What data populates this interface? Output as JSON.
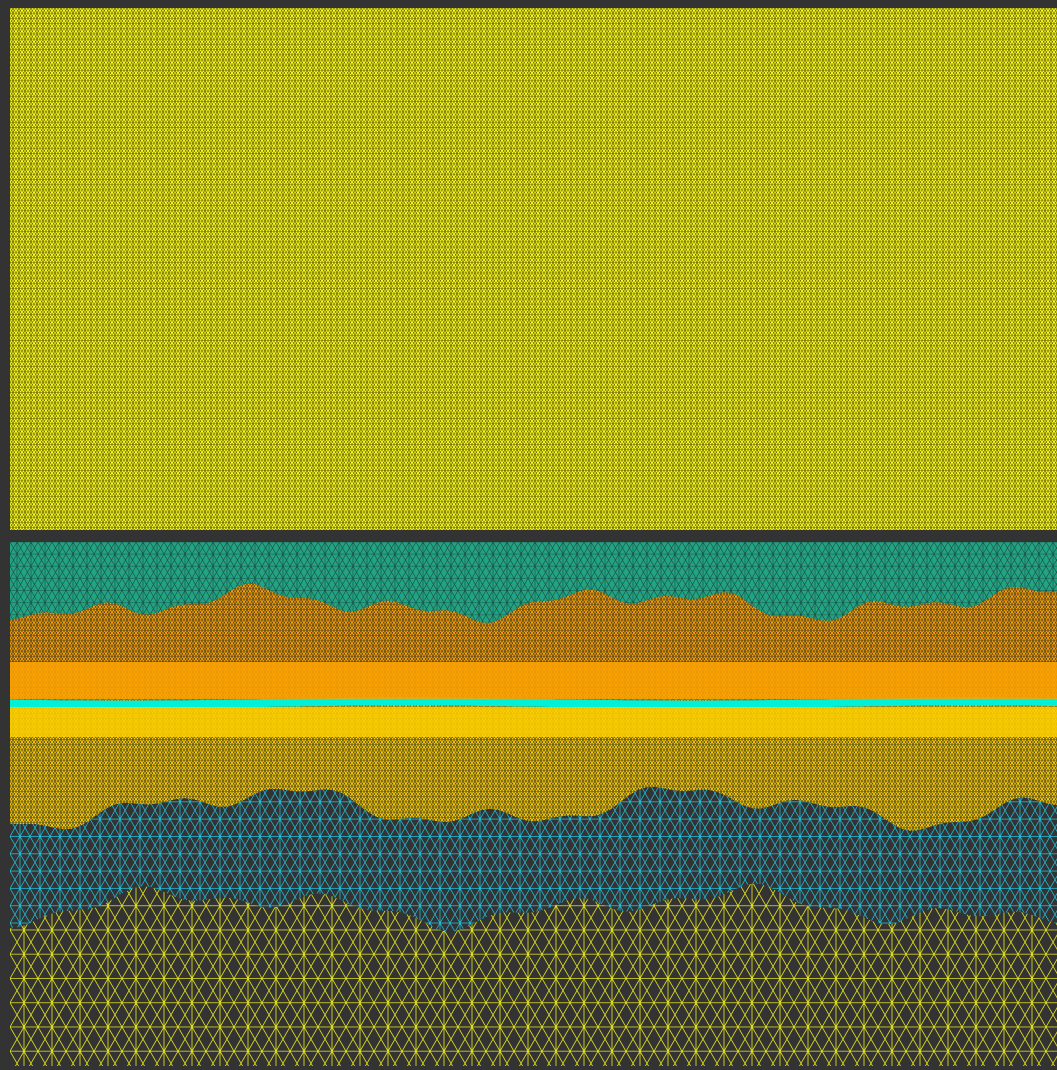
{
  "figure": {
    "panels": [
      {
        "name": "uniform-mesh-panel",
        "regions": [
          {
            "name": "single-region",
            "fill": "#ffff1f",
            "edge": "#1f1f00",
            "density": "very-fine"
          }
        ]
      },
      {
        "name": "layered-mesh-panel",
        "regions": [
          {
            "name": "top-layer",
            "fill": "#22a383",
            "edge": "#1a4c40",
            "density": "medium"
          },
          {
            "name": "upper-graded-layer",
            "fill": "#ffa500",
            "edge": "#2a2a2a",
            "density": "graded-fine"
          },
          {
            "name": "thin-interface-band",
            "fill": "#00f0d8",
            "edge": "#00f0d8",
            "density": "very-fine"
          },
          {
            "name": "lower-graded-layer",
            "fill": "#ffd000",
            "edge": "#2a2a2a",
            "density": "graded-fine"
          },
          {
            "name": "blue-layer",
            "fill": "#333333",
            "edge": "#1ec8e6",
            "density": "medium"
          },
          {
            "name": "bottom-layer",
            "fill": "#333333",
            "edge": "#e8e81e",
            "density": "coarse"
          }
        ]
      }
    ],
    "background": "#333333"
  }
}
